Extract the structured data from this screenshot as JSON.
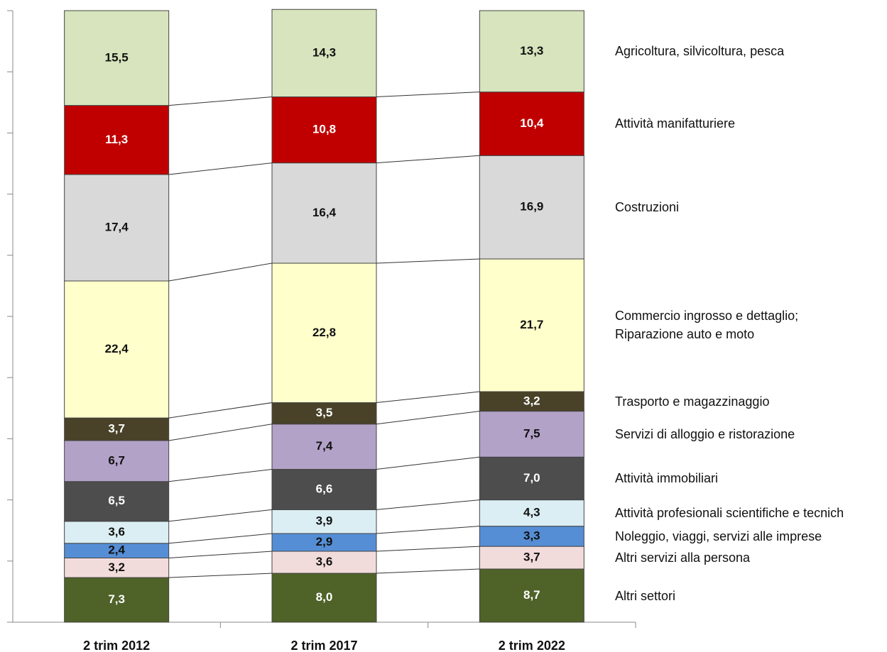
{
  "chart_data": {
    "type": "stacked_bar",
    "categories": [
      "2 trim 2012",
      "2 trim 2017",
      "2 trim 2022"
    ],
    "ylim": [
      0,
      100
    ],
    "yticks": [
      0,
      10,
      20,
      30,
      40,
      50,
      60,
      70,
      80,
      90,
      100
    ],
    "series": [
      {
        "name": "Altri settori",
        "color": "#4f6228",
        "values": [
          7.3,
          8.0,
          8.7
        ],
        "value_labels": [
          "7,3",
          "8,0",
          "8,7"
        ]
      },
      {
        "name": "Altri servizi alla persona",
        "color": "#f2dcdb",
        "values": [
          3.2,
          3.6,
          3.7
        ],
        "value_labels": [
          "3,2",
          "3,6",
          "3,7"
        ]
      },
      {
        "name": "Noleggio, viaggi, servizi alle imprese",
        "color": "#558ed5",
        "values": [
          2.4,
          2.9,
          3.3
        ],
        "value_labels": [
          "2,4",
          "2,9",
          "3,3"
        ]
      },
      {
        "name": "Attività profesionali scientifiche e tecnich",
        "color": "#dbeef4",
        "values": [
          3.6,
          3.9,
          4.3
        ],
        "value_labels": [
          "3,6",
          "3,9",
          "4,3"
        ]
      },
      {
        "name": "Attività immobiliari",
        "color": "#4d4d4d",
        "values": [
          6.5,
          6.6,
          7.0
        ],
        "value_labels": [
          "6,5",
          "6,6",
          "7,0"
        ]
      },
      {
        "name": "Servizi di alloggio e ristorazione",
        "color": "#b3a2c7",
        "values": [
          6.7,
          7.4,
          7.5
        ],
        "value_labels": [
          "6,7",
          "7,4",
          "7,5"
        ]
      },
      {
        "name": "Trasporto e magazzinaggio",
        "color": "#4a4228",
        "values": [
          3.7,
          3.5,
          3.2
        ],
        "value_labels": [
          "3,7",
          "3,5",
          "3,2"
        ]
      },
      {
        "name": "Commercio ingrosso e dettaglio;\nRiparazione auto e moto",
        "color": "#ffffcc",
        "values": [
          22.4,
          22.8,
          21.7
        ],
        "value_labels": [
          "22,4",
          "22,8",
          "21,7"
        ]
      },
      {
        "name": "Costruzioni",
        "color": "#d9d9d9",
        "values": [
          17.4,
          16.4,
          16.9
        ],
        "value_labels": [
          "17,4",
          "16,4",
          "16,9"
        ]
      },
      {
        "name": "Attività manifatturiere",
        "color": "#c00000",
        "values": [
          11.3,
          10.8,
          10.4
        ],
        "value_labels": [
          "11,3",
          "10,8",
          "10,4"
        ]
      },
      {
        "name": "Agricoltura, silvicoltura, pesca",
        "color": "#d7e4bd",
        "values": [
          15.5,
          14.3,
          13.3
        ],
        "value_labels": [
          "15,5",
          "14,3",
          "13,3"
        ]
      }
    ]
  }
}
